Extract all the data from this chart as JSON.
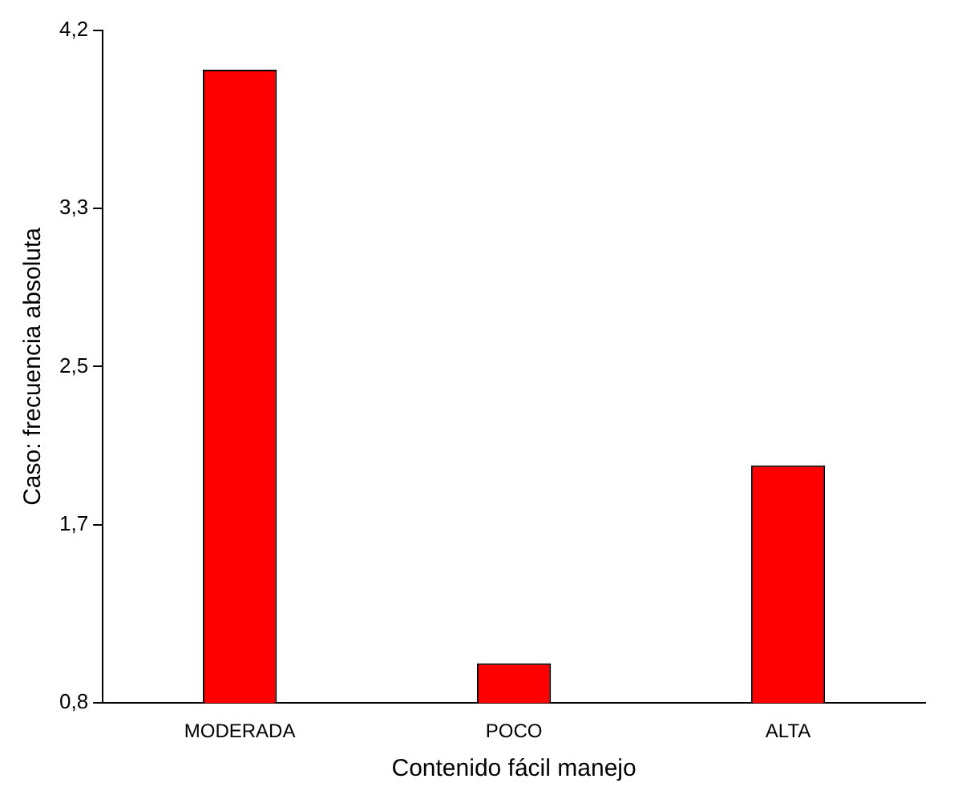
{
  "chart_data": {
    "type": "bar",
    "xlabel": "Contenido fácil manejo",
    "ylabel": "Caso: frecuencia absoluta",
    "categories": [
      "MODERADA",
      "POCO",
      "ALTA"
    ],
    "values": [
      4,
      1,
      2
    ],
    "color": "#ff0000",
    "ylim": [
      0.8,
      4.2
    ],
    "yticks": [
      {
        "value": 0.8,
        "label": "0,8"
      },
      {
        "value": 1.7,
        "label": "1,7"
      },
      {
        "value": 2.5,
        "label": "2,5"
      },
      {
        "value": 3.3,
        "label": "3,3"
      },
      {
        "value": 4.2,
        "label": "4,2"
      }
    ],
    "grid": false,
    "legend": false
  }
}
